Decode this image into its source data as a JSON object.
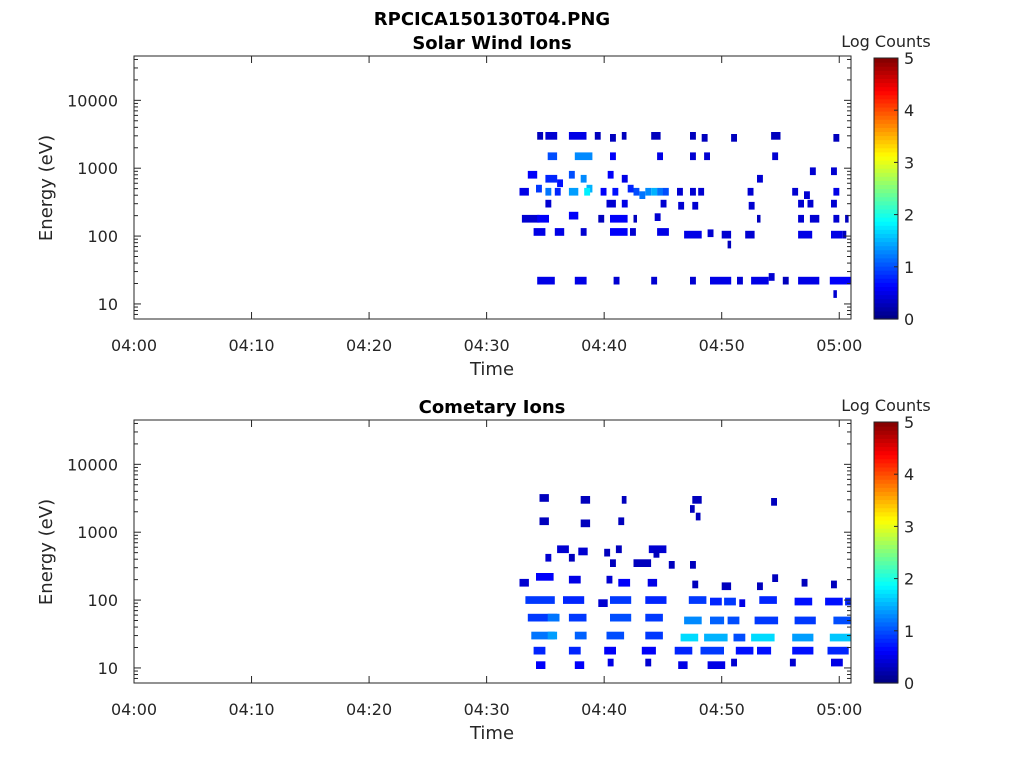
{
  "figure_title": "RPCICA150130T04.PNG",
  "chart_data": [
    {
      "type": "heatmap",
      "title": "Solar Wind Ions",
      "xlabel": "Time",
      "ylabel": "Energy (eV)",
      "x_ticks": [
        "04:00",
        "04:10",
        "04:20",
        "04:30",
        "04:40",
        "04:50",
        "05:00"
      ],
      "xlim_minutes": [
        0,
        61
      ],
      "y_ticks": [
        "10",
        "100",
        "1000",
        "10000"
      ],
      "ylim_eV": [
        6,
        45000
      ],
      "y_scale": "log",
      "colorbar": {
        "label": "Log Counts",
        "ticks": [
          "0",
          "1",
          "2",
          "3",
          "4",
          "5"
        ],
        "range": [
          0,
          5
        ],
        "colormap": "jet"
      },
      "cells": [
        [
          34.3,
          0.5,
          3000,
          0.3
        ],
        [
          35.0,
          1.0,
          3000,
          0.4
        ],
        [
          37.0,
          1.5,
          3000,
          0.5
        ],
        [
          39.2,
          0.5,
          3000,
          0.3
        ],
        [
          40.5,
          0.5,
          2800,
          0.3
        ],
        [
          41.5,
          0.4,
          3000,
          0.3
        ],
        [
          44.0,
          0.8,
          3000,
          0.3
        ],
        [
          47.3,
          0.5,
          3000,
          0.3
        ],
        [
          48.3,
          0.5,
          2800,
          0.3
        ],
        [
          50.8,
          0.5,
          2800,
          0.3
        ],
        [
          54.2,
          0.8,
          3000,
          0.3
        ],
        [
          59.5,
          0.5,
          2800,
          0.3
        ],
        [
          35.2,
          0.8,
          1500,
          1.0
        ],
        [
          37.5,
          1.5,
          1500,
          1.3
        ],
        [
          40.5,
          0.5,
          1500,
          0.6
        ],
        [
          44.5,
          0.5,
          1500,
          0.5
        ],
        [
          47.3,
          0.5,
          1500,
          0.4
        ],
        [
          48.5,
          0.5,
          1500,
          0.4
        ],
        [
          54.3,
          0.5,
          1500,
          0.4
        ],
        [
          33.5,
          0.8,
          800,
          0.6
        ],
        [
          35.0,
          1.0,
          700,
          0.8
        ],
        [
          36.0,
          0.5,
          600,
          0.7
        ],
        [
          37.0,
          0.5,
          800,
          1.0
        ],
        [
          38.0,
          0.5,
          700,
          1.3
        ],
        [
          38.5,
          0.5,
          500,
          1.5
        ],
        [
          40.3,
          0.5,
          800,
          0.6
        ],
        [
          41.5,
          0.5,
          700,
          0.5
        ],
        [
          53.0,
          0.5,
          700,
          0.4
        ],
        [
          57.5,
          0.5,
          900,
          0.4
        ],
        [
          59.3,
          0.5,
          900,
          0.4
        ],
        [
          32.8,
          0.8,
          450,
          0.5
        ],
        [
          34.2,
          0.5,
          500,
          0.9
        ],
        [
          35.0,
          0.5,
          450,
          1.2
        ],
        [
          35.8,
          0.5,
          450,
          0.8
        ],
        [
          37.0,
          0.8,
          450,
          1.4
        ],
        [
          38.3,
          0.5,
          450,
          1.8
        ],
        [
          39.7,
          0.5,
          450,
          0.6
        ],
        [
          40.7,
          0.5,
          450,
          0.7
        ],
        [
          42.0,
          0.5,
          500,
          0.8
        ],
        [
          42.5,
          0.5,
          450,
          1.0
        ],
        [
          43.0,
          0.5,
          400,
          1.2
        ],
        [
          43.5,
          0.5,
          450,
          1.3
        ],
        [
          44.0,
          0.5,
          450,
          1.5
        ],
        [
          44.5,
          0.5,
          450,
          1.2
        ],
        [
          45.0,
          0.5,
          450,
          1.0
        ],
        [
          46.2,
          0.5,
          450,
          0.4
        ],
        [
          47.3,
          0.5,
          450,
          0.4
        ],
        [
          48.0,
          0.5,
          450,
          0.4
        ],
        [
          52.2,
          0.5,
          450,
          0.4
        ],
        [
          56.0,
          0.5,
          450,
          0.4
        ],
        [
          57.0,
          0.5,
          400,
          0.4
        ],
        [
          59.5,
          0.5,
          450,
          0.5
        ],
        [
          35.0,
          0.5,
          300,
          0.4
        ],
        [
          40.2,
          0.8,
          300,
          0.4
        ],
        [
          41.5,
          0.5,
          300,
          0.5
        ],
        [
          44.8,
          0.5,
          300,
          0.4
        ],
        [
          46.3,
          0.5,
          280,
          0.4
        ],
        [
          47.5,
          0.5,
          280,
          0.4
        ],
        [
          52.3,
          0.5,
          280,
          0.4
        ],
        [
          56.5,
          0.5,
          300,
          0.4
        ],
        [
          57.3,
          0.5,
          300,
          0.4
        ],
        [
          59.3,
          0.5,
          300,
          0.4
        ],
        [
          33.0,
          1.5,
          180,
          0.4
        ],
        [
          34.3,
          1.0,
          180,
          0.6
        ],
        [
          37.0,
          0.8,
          200,
          0.6
        ],
        [
          39.5,
          0.5,
          180,
          0.3
        ],
        [
          40.5,
          1.5,
          180,
          0.6
        ],
        [
          42.5,
          0.3,
          180,
          0.3
        ],
        [
          44.3,
          0.5,
          190,
          0.4
        ],
        [
          53.0,
          0.3,
          180,
          0.3
        ],
        [
          56.5,
          0.5,
          180,
          0.4
        ],
        [
          57.5,
          0.8,
          180,
          0.4
        ],
        [
          59.5,
          0.5,
          180,
          0.4
        ],
        [
          60.5,
          0.3,
          180,
          0.3
        ],
        [
          34.0,
          1.0,
          115,
          0.5
        ],
        [
          35.8,
          0.8,
          115,
          0.5
        ],
        [
          38.0,
          0.5,
          115,
          0.4
        ],
        [
          40.5,
          1.5,
          115,
          0.6
        ],
        [
          42.2,
          0.5,
          115,
          0.4
        ],
        [
          44.5,
          1.0,
          115,
          0.5
        ],
        [
          46.8,
          1.5,
          105,
          0.5
        ],
        [
          48.8,
          0.5,
          110,
          0.4
        ],
        [
          50.0,
          0.8,
          105,
          0.4
        ],
        [
          52.0,
          0.8,
          105,
          0.4
        ],
        [
          56.5,
          1.2,
          105,
          0.5
        ],
        [
          59.3,
          1.0,
          105,
          0.5
        ],
        [
          60.3,
          0.3,
          105,
          0.3
        ],
        [
          50.5,
          0.3,
          75,
          0.3
        ],
        [
          34.3,
          1.5,
          22,
          0.5
        ],
        [
          37.5,
          1.0,
          22,
          0.5
        ],
        [
          40.8,
          0.5,
          22,
          0.4
        ],
        [
          44.0,
          0.5,
          22,
          0.4
        ],
        [
          47.3,
          0.5,
          22,
          0.4
        ],
        [
          49.0,
          1.8,
          22,
          0.5
        ],
        [
          51.3,
          0.5,
          22,
          0.4
        ],
        [
          52.5,
          1.5,
          22,
          0.5
        ],
        [
          54.0,
          0.5,
          25,
          0.4
        ],
        [
          55.2,
          0.5,
          22,
          0.3
        ],
        [
          56.5,
          1.8,
          22,
          0.5
        ],
        [
          59.2,
          1.8,
          22,
          0.6
        ],
        [
          59.5,
          0.3,
          14,
          0.4
        ]
      ]
    },
    {
      "type": "heatmap",
      "title": "Cometary Ions",
      "xlabel": "Time",
      "ylabel": "Energy (eV)",
      "x_ticks": [
        "04:00",
        "04:10",
        "04:20",
        "04:30",
        "04:40",
        "04:50",
        "05:00"
      ],
      "xlim_minutes": [
        0,
        61
      ],
      "y_ticks": [
        "10",
        "100",
        "1000",
        "10000"
      ],
      "ylim_eV": [
        6,
        45000
      ],
      "y_scale": "log",
      "colorbar": {
        "label": "Log Counts",
        "ticks": [
          "0",
          "1",
          "2",
          "3",
          "4",
          "5"
        ],
        "range": [
          0,
          5
        ],
        "colormap": "jet"
      },
      "cells": [
        [
          34.5,
          0.8,
          3200,
          0.3
        ],
        [
          38.0,
          0.8,
          3000,
          0.3
        ],
        [
          41.5,
          0.4,
          3000,
          0.3
        ],
        [
          47.5,
          0.8,
          3000,
          0.3
        ],
        [
          54.2,
          0.5,
          2800,
          0.3
        ],
        [
          47.3,
          0.4,
          2200,
          0.3
        ],
        [
          47.8,
          0.4,
          1700,
          0.3
        ],
        [
          34.5,
          0.8,
          1450,
          0.3
        ],
        [
          38.0,
          0.8,
          1350,
          0.3
        ],
        [
          41.2,
          0.5,
          1450,
          0.3
        ],
        [
          36.0,
          1.0,
          560,
          0.4
        ],
        [
          37.8,
          0.8,
          520,
          0.4
        ],
        [
          40.0,
          0.5,
          500,
          0.3
        ],
        [
          41.0,
          0.5,
          560,
          0.3
        ],
        [
          43.8,
          1.5,
          560,
          0.4
        ],
        [
          44.2,
          0.5,
          480,
          0.3
        ],
        [
          35.0,
          0.5,
          420,
          0.4
        ],
        [
          37.0,
          0.5,
          420,
          0.3
        ],
        [
          40.5,
          0.5,
          350,
          0.3
        ],
        [
          42.5,
          1.5,
          350,
          0.3
        ],
        [
          45.5,
          0.5,
          330,
          0.3
        ],
        [
          47.3,
          0.5,
          330,
          0.3
        ],
        [
          32.8,
          0.8,
          180,
          0.4
        ],
        [
          34.2,
          1.5,
          220,
          0.6
        ],
        [
          37.0,
          1.0,
          200,
          0.5
        ],
        [
          40.2,
          0.5,
          200,
          0.4
        ],
        [
          41.2,
          1.0,
          180,
          0.6
        ],
        [
          43.7,
          0.8,
          180,
          0.5
        ],
        [
          47.5,
          0.5,
          170,
          0.3
        ],
        [
          50.0,
          0.8,
          160,
          0.3
        ],
        [
          53.0,
          0.5,
          160,
          0.3
        ],
        [
          54.3,
          0.5,
          210,
          0.3
        ],
        [
          56.8,
          0.5,
          180,
          0.3
        ],
        [
          59.3,
          0.5,
          170,
          0.3
        ],
        [
          33.3,
          2.5,
          100,
          0.9
        ],
        [
          36.5,
          1.8,
          100,
          0.8
        ],
        [
          39.5,
          0.8,
          90,
          0.4
        ],
        [
          40.5,
          1.8,
          100,
          0.9
        ],
        [
          43.5,
          1.8,
          100,
          0.8
        ],
        [
          47.2,
          1.5,
          100,
          0.9
        ],
        [
          49.0,
          1.0,
          95,
          0.8
        ],
        [
          50.2,
          1.0,
          95,
          0.9
        ],
        [
          51.5,
          0.5,
          90,
          0.5
        ],
        [
          53.2,
          1.5,
          100,
          0.8
        ],
        [
          56.2,
          1.5,
          95,
          0.7
        ],
        [
          58.8,
          1.5,
          95,
          0.7
        ],
        [
          60.5,
          0.5,
          95,
          0.8
        ],
        [
          33.5,
          2.5,
          55,
          0.9
        ],
        [
          35.2,
          1.0,
          55,
          1.2
        ],
        [
          37.0,
          1.5,
          55,
          0.9
        ],
        [
          40.5,
          1.8,
          55,
          1.0
        ],
        [
          43.5,
          1.5,
          55,
          0.9
        ],
        [
          46.8,
          1.5,
          50,
          1.3
        ],
        [
          49.0,
          1.2,
          50,
          1.1
        ],
        [
          50.5,
          1.0,
          50,
          1.0
        ],
        [
          52.8,
          2.0,
          50,
          0.9
        ],
        [
          56.2,
          1.8,
          50,
          0.9
        ],
        [
          59.5,
          1.5,
          50,
          1.0
        ],
        [
          33.8,
          2.0,
          30,
          1.2
        ],
        [
          35.2,
          0.8,
          30,
          1.4
        ],
        [
          37.5,
          1.0,
          30,
          1.1
        ],
        [
          40.2,
          1.5,
          30,
          1.0
        ],
        [
          43.5,
          1.5,
          30,
          0.9
        ],
        [
          46.5,
          1.5,
          28,
          1.7
        ],
        [
          48.5,
          2.0,
          28,
          1.5
        ],
        [
          51.0,
          1.0,
          28,
          1.0
        ],
        [
          52.5,
          2.0,
          28,
          1.7
        ],
        [
          56.0,
          1.8,
          28,
          1.4
        ],
        [
          59.2,
          1.8,
          28,
          1.6
        ],
        [
          34.0,
          1.0,
          18,
          0.8
        ],
        [
          37.0,
          1.0,
          18,
          0.8
        ],
        [
          40.0,
          1.0,
          18,
          0.6
        ],
        [
          43.2,
          1.2,
          18,
          0.6
        ],
        [
          46.0,
          1.5,
          18,
          0.8
        ],
        [
          48.2,
          2.0,
          18,
          0.9
        ],
        [
          51.2,
          1.5,
          18,
          0.7
        ],
        [
          53.0,
          1.2,
          18,
          0.7
        ],
        [
          56.0,
          1.8,
          18,
          0.7
        ],
        [
          59.0,
          1.8,
          18,
          0.8
        ],
        [
          34.2,
          0.8,
          11,
          0.6
        ],
        [
          37.5,
          0.8,
          11,
          0.6
        ],
        [
          40.3,
          0.5,
          12,
          0.5
        ],
        [
          43.5,
          0.5,
          12,
          0.4
        ],
        [
          46.3,
          0.8,
          11,
          0.5
        ],
        [
          48.8,
          1.5,
          11,
          0.5
        ],
        [
          50.8,
          0.5,
          12,
          0.4
        ],
        [
          55.8,
          0.5,
          12,
          0.4
        ],
        [
          59.3,
          1.0,
          12,
          0.5
        ]
      ]
    }
  ]
}
